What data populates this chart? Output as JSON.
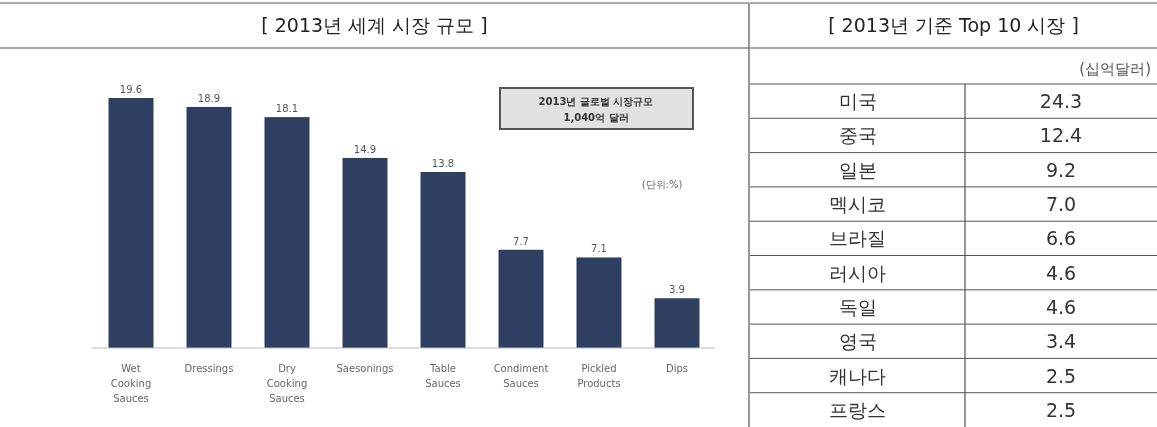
{
  "chart_data": [
    {
      "type": "bar",
      "title": "[ 2013년 세계 시장 규모 ]",
      "categories": [
        "Wet Cooking Sauces",
        "Dressings",
        "Dry Cooking Sauces",
        "Saesonings",
        "Table Sauces",
        "Condiment Sauces",
        "Pickled Products",
        "Dips"
      ],
      "values": [
        19.6,
        18.9,
        18.1,
        14.9,
        13.8,
        7.7,
        7.1,
        3.9
      ],
      "color": "#2e3f62",
      "data_labels": true,
      "annotations": [
        "2013년 글로벌 시장규모",
        "1,040억 달러",
        "(단위:%)"
      ]
    },
    {
      "type": "other",
      "title": "[ 2013년 기준 Top 10 시장 ]",
      "categories": [
        "미국",
        "중국",
        "일본",
        "멕시코",
        "브라질",
        "러시아",
        "독일",
        "영국",
        "캐나다",
        "프랑스"
      ],
      "values": [
        24.3,
        12.4,
        9.2,
        7.0,
        6.6,
        4.6,
        4.6,
        3.4,
        2.5,
        2.5
      ],
      "value_labels": [
        "24.3",
        "12.4",
        "9.2",
        "7.0",
        "6.6",
        "4.6",
        "4.6",
        "3.4",
        "2.5",
        "2.5"
      ],
      "data_labels": true,
      "annotations": [
        "(십억달러)"
      ]
    }
  ]
}
